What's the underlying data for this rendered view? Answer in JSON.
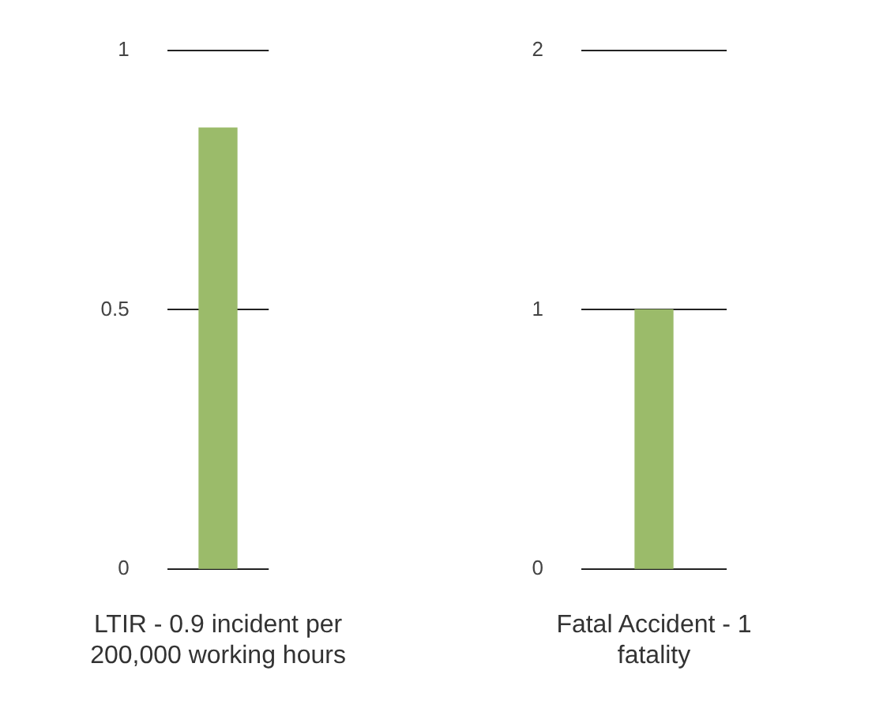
{
  "chart_data": [
    {
      "type": "bar",
      "categories": [
        "LTIR - 0.9 incident per 200,000 working hours"
      ],
      "values": [
        0.85
      ],
      "color": "#9bbb6a",
      "ylim": [
        0,
        1
      ],
      "yticks": [
        0,
        0.5,
        1
      ],
      "grid": "y",
      "legend": false
    },
    {
      "type": "bar",
      "categories": [
        "Fatal Accident - 1 fatality"
      ],
      "values": [
        1
      ],
      "color": "#9bbb6a",
      "ylim": [
        0,
        2
      ],
      "yticks": [
        0,
        1,
        2
      ],
      "grid": "y",
      "legend": false
    }
  ]
}
